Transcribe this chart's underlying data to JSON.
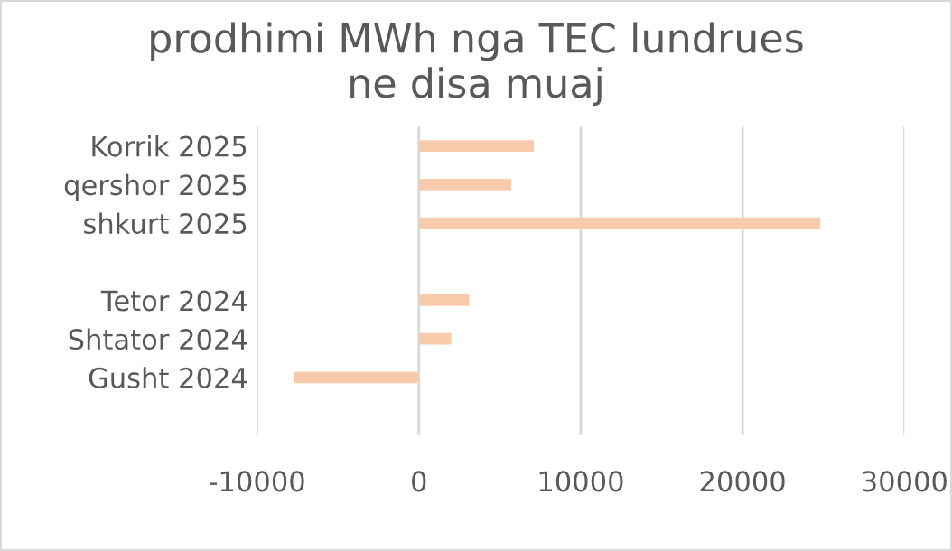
{
  "chart_data": {
    "type": "bar",
    "orientation": "horizontal",
    "title": "prodhimi MWh nga TEC lundrues\nne disa muaj",
    "categories": [
      "Korrik 2025",
      "qershor 2025",
      "shkurt 2025",
      null,
      "Tetor 2024",
      "Shtator 2024",
      "Gusht 2024",
      null
    ],
    "values": [
      7100,
      5700,
      24800,
      null,
      3100,
      2000,
      -7700,
      null
    ],
    "color": "#f8cbad",
    "xlim": [
      -10000,
      30000
    ],
    "xticks": [
      -10000,
      0,
      10000,
      20000,
      30000
    ],
    "grid": "x"
  }
}
